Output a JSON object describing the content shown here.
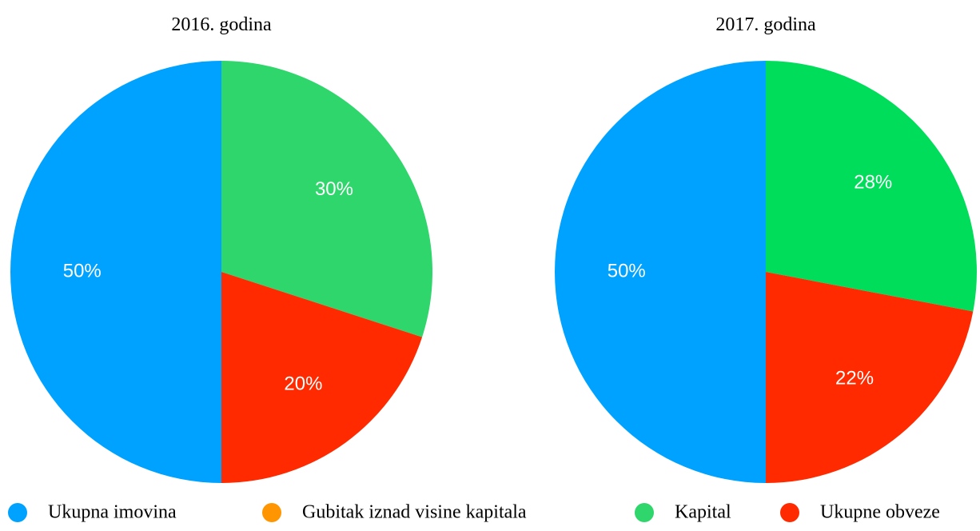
{
  "chart_data": [
    {
      "type": "pie",
      "title": "2016. godina",
      "categories": [
        "Ukupna imovina",
        "Gubitak iznad visine kapitala",
        "Kapital",
        "Ukupne obveze"
      ],
      "values": [
        50,
        0,
        30,
        20
      ],
      "value_labels": [
        "50%",
        null,
        "30%",
        "20%"
      ],
      "colors": [
        "#00a2ff",
        "#ff9500",
        "#2ed66b",
        "#ff2a00"
      ]
    },
    {
      "type": "pie",
      "title": "2017. godina",
      "categories": [
        "Ukupna imovina",
        "Gubitak iznad visine kapitala",
        "Kapital",
        "Ukupne obveze"
      ],
      "values": [
        50,
        0,
        28,
        22
      ],
      "value_labels": [
        "50%",
        null,
        "28%",
        "22%"
      ],
      "colors": [
        "#00a2ff",
        "#ff9500",
        "#00dd5a",
        "#ff2a00"
      ]
    }
  ]
}
